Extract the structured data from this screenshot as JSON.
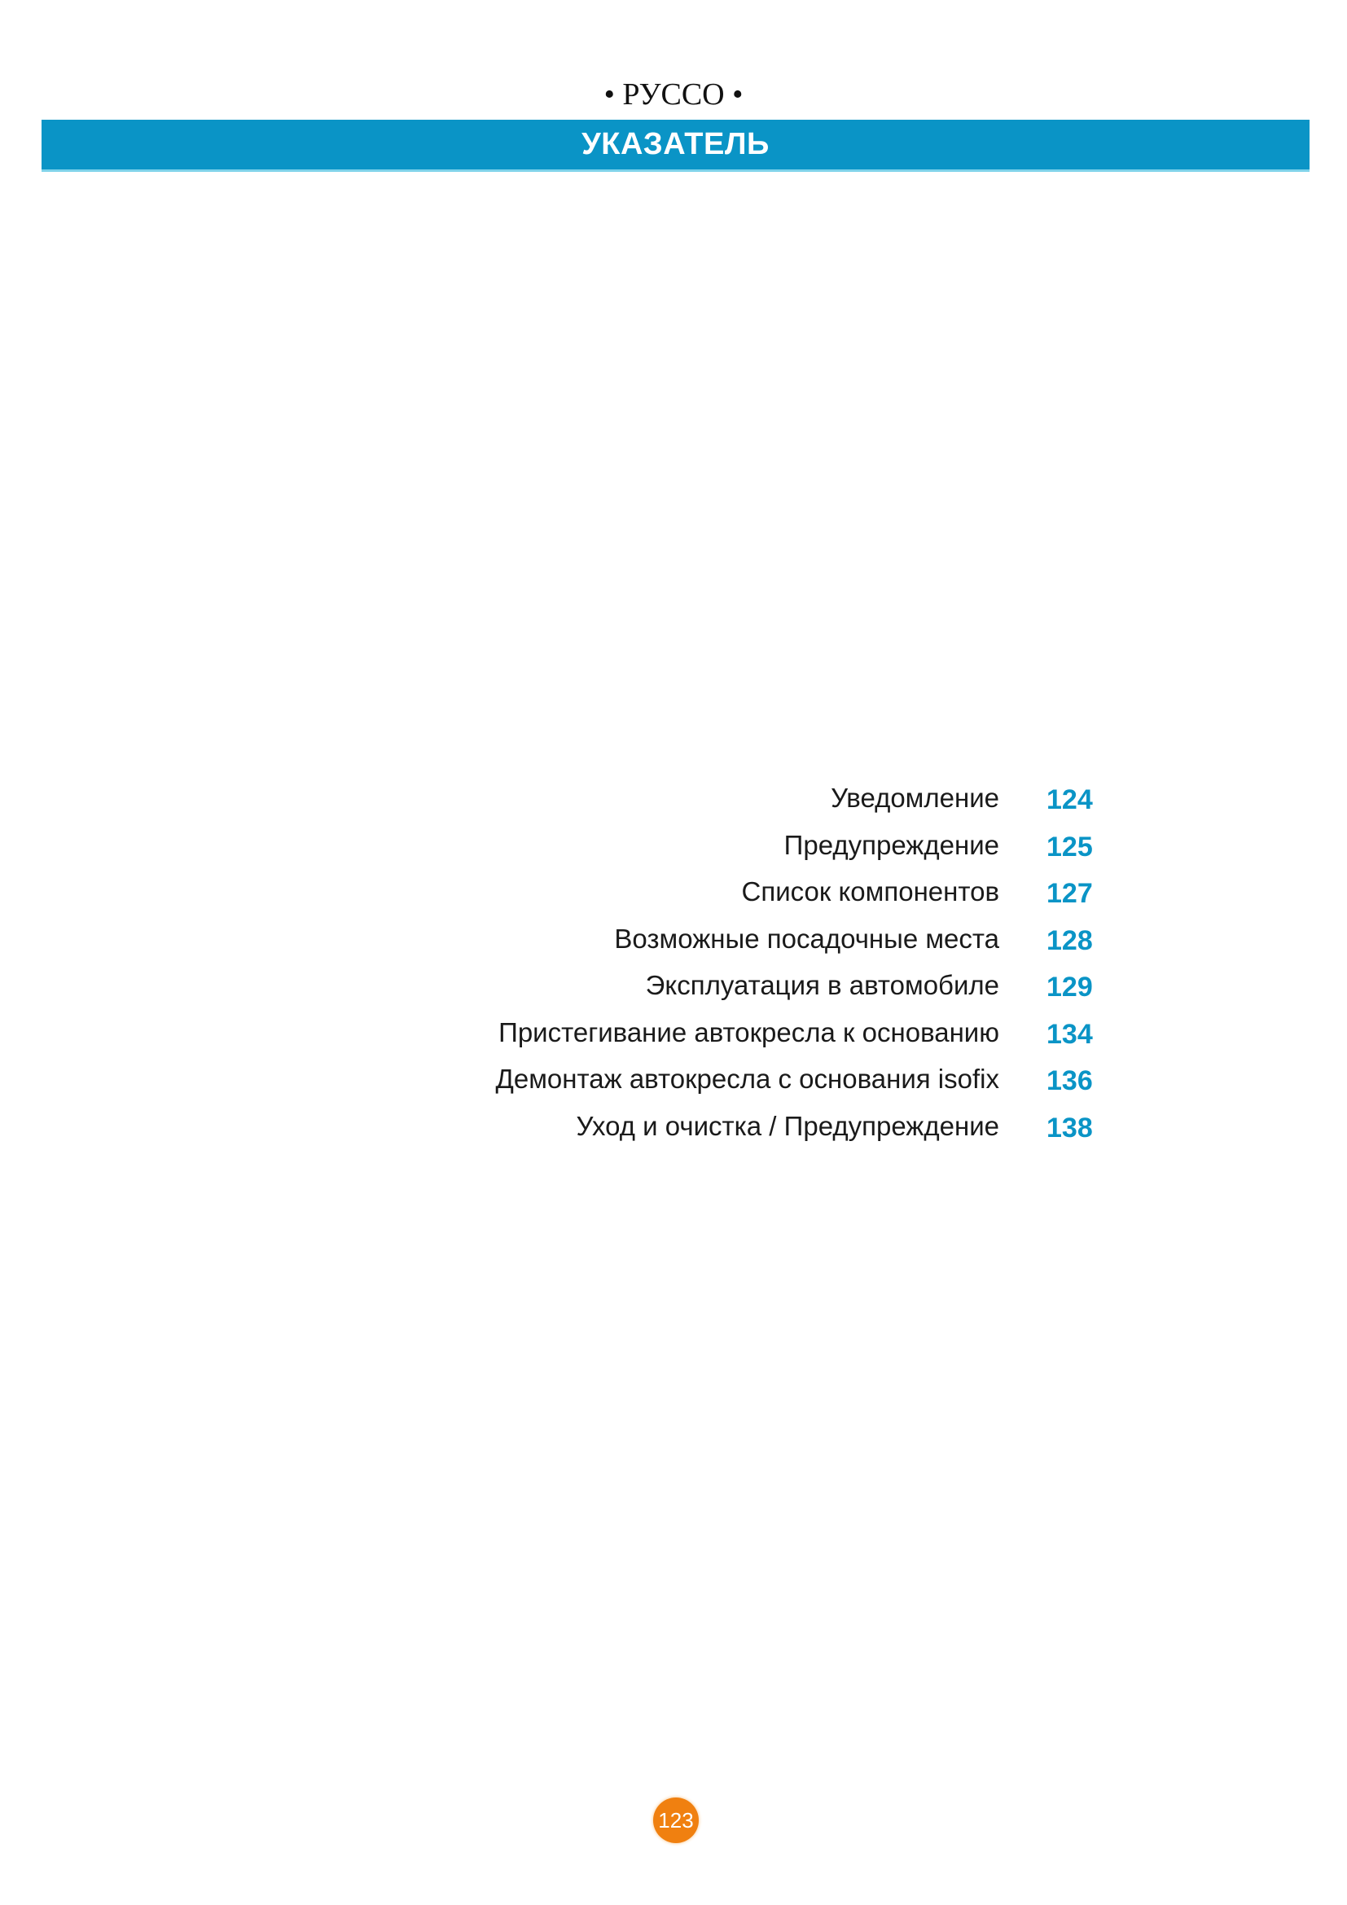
{
  "header": {
    "language": "• РУССО •",
    "title": "УКАЗАТЕЛЬ"
  },
  "colors": {
    "accent": "#0a94c6",
    "page_badge": "#f08010"
  },
  "toc": [
    {
      "label": "Уведомление",
      "page": "124"
    },
    {
      "label": "Предупреждение",
      "page": "125"
    },
    {
      "label": "Список компонентов",
      "page": "127"
    },
    {
      "label": "Возможные посадочные места",
      "page": "128"
    },
    {
      "label": "Эксплуатация в автомобиле",
      "page": "129"
    },
    {
      "label": "Пристегивание автокресла к основанию",
      "page": "134"
    },
    {
      "label": "Демонтаж автокресла с основания isofix",
      "page": "136"
    },
    {
      "label": "Уход и очистка / Предупреждение",
      "page": "138"
    }
  ],
  "footer": {
    "page_number": "123"
  }
}
